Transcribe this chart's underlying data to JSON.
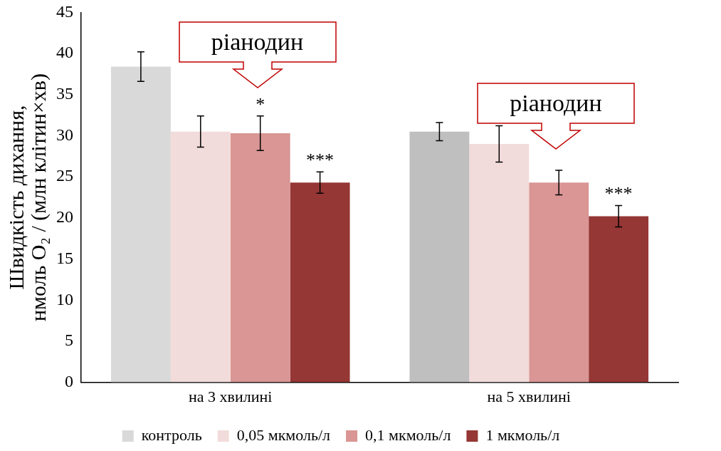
{
  "chart_data": {
    "type": "bar",
    "categories": [
      "на 3 хвилині",
      "на 5 хвилині"
    ],
    "ylabel": "Швидкість дихання,\nнмоль O₂ / (млн клітин×хв)",
    "ylim": [
      0,
      45
    ],
    "yticks": [
      0,
      5,
      10,
      15,
      20,
      25,
      30,
      35,
      40,
      45
    ],
    "grid": false,
    "legend": "bottom",
    "series": [
      {
        "name": "контроль",
        "color": "#d9d9d9",
        "colors": [
          "#d9d9d9",
          "#bfbfbf"
        ],
        "values": [
          38.4,
          30.5
        ],
        "errors": [
          1.8,
          1.1
        ]
      },
      {
        "name": "0,05 мкмоль/л",
        "color": "#f2dcdb",
        "values": [
          30.5,
          29.0
        ],
        "errors": [
          1.9,
          2.2
        ]
      },
      {
        "name": "0,1 мкмоль/л",
        "color": "#d99694",
        "values": [
          30.3,
          24.3
        ],
        "errors": [
          2.1,
          1.5
        ],
        "value_labels": [
          "*",
          null
        ]
      },
      {
        "name": "1 мкмоль/л",
        "color": "#953735",
        "values": [
          24.3,
          20.2
        ],
        "errors": [
          1.3,
          1.3
        ],
        "value_labels": [
          "***",
          "***"
        ]
      }
    ],
    "annotations": [
      "ріанодин",
      "ріанодин"
    ]
  }
}
